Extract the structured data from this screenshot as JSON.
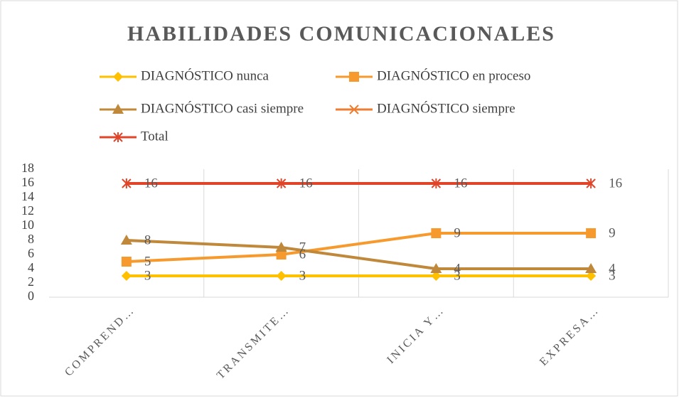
{
  "chart_data": {
    "type": "line",
    "title": "HABILIDADES  COMUNICACIONALES",
    "categories": [
      "COMPREND…",
      "TRANSMITE…",
      "INICIA Y…",
      "EXPRESA…"
    ],
    "series": [
      {
        "name": "DIAGNÓSTICO nunca",
        "color": "#FFC000",
        "marker": "diamond",
        "values": [
          3,
          3,
          3,
          3
        ]
      },
      {
        "name": "DIAGNÓSTICO en proceso",
        "color": "#F79A2E",
        "marker": "square",
        "values": [
          5,
          6,
          9,
          9
        ]
      },
      {
        "name": "DIAGNÓSTICO casi siempre",
        "color": "#C0883A",
        "marker": "triangle",
        "values": [
          8,
          7,
          4,
          4
        ]
      },
      {
        "name": "DIAGNÓSTICO siempre",
        "color": "#ED7D31",
        "marker": "x",
        "values": [
          null,
          null,
          null,
          null
        ]
      },
      {
        "name": "Total",
        "color": "#E0452A",
        "marker": "star",
        "values": [
          16,
          16,
          16,
          16
        ]
      }
    ],
    "ylim": [
      0,
      18
    ],
    "yticks": [
      0,
      2,
      4,
      6,
      8,
      10,
      12,
      14,
      16,
      18
    ],
    "grid": "x",
    "data_labels": true
  }
}
